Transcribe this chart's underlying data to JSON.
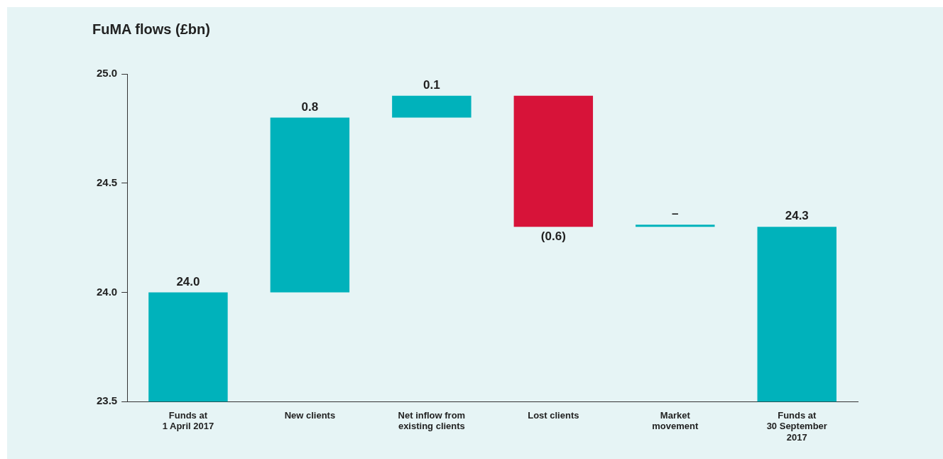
{
  "chart_data": {
    "type": "bar",
    "title": "FuMA flows (£bn)",
    "categories": [
      "Funds at\n1 April 2017",
      "New clients",
      "Net inflow from\nexisting clients",
      "Lost clients",
      "Market\nmovement",
      "Funds at\n30 September\n2017"
    ],
    "values": [
      24.0,
      0.8,
      0.1,
      -0.6,
      0,
      24.3
    ],
    "base": [
      null,
      24.0,
      24.8,
      24.9,
      24.3,
      null
    ],
    "colors": [
      "#00b2bb",
      "#00b2bb",
      "#00b2bb",
      "#d71339",
      "#00b2bb",
      "#00b2bb"
    ],
    "value_labels": [
      "24.0",
      "0.8",
      "0.1",
      "(0.6)",
      "–",
      "24.3"
    ],
    "ylim": [
      23.5,
      25.0
    ],
    "yticks": [
      23.5,
      {
        "value": 24.0,
        "label": "24.0"
      },
      24.5,
      {
        "value": 25.0,
        "label": "25.0"
      }
    ],
    "grid": false,
    "legend": false
  }
}
